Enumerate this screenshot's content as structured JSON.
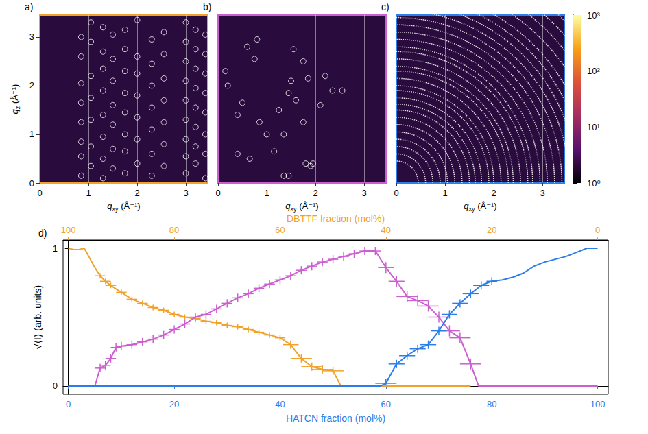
{
  "chart_data": [
    {
      "label": "a)",
      "type": "scatter",
      "color": "#f2a12a",
      "marker": "open_circle",
      "grid": "x",
      "xlabel": "qxy (Å⁻¹)",
      "ylabel": "qz (Å⁻¹)",
      "xlim": [
        0,
        3.45
      ],
      "ylim": [
        0,
        3.45
      ],
      "xticks": [
        0,
        1,
        2,
        3
      ],
      "yticks": [
        0,
        1,
        2,
        3
      ],
      "points": [
        [
          0.85,
          0.15
        ],
        [
          0.85,
          0.55
        ],
        [
          0.85,
          0.85
        ],
        [
          0.85,
          1.25
        ],
        [
          0.85,
          1.65
        ],
        [
          0.85,
          2.05
        ],
        [
          0.85,
          2.6
        ],
        [
          0.85,
          3.0
        ],
        [
          1.05,
          0.35
        ],
        [
          1.05,
          0.75
        ],
        [
          1.05,
          1.3
        ],
        [
          1.05,
          1.75
        ],
        [
          1.05,
          2.2
        ],
        [
          1.05,
          2.9
        ],
        [
          1.05,
          3.3
        ],
        [
          1.3,
          0.1
        ],
        [
          1.3,
          0.5
        ],
        [
          1.3,
          0.95
        ],
        [
          1.3,
          1.4
        ],
        [
          1.3,
          1.9
        ],
        [
          1.3,
          2.35
        ],
        [
          1.3,
          2.7
        ],
        [
          1.3,
          3.2
        ],
        [
          1.5,
          0.3
        ],
        [
          1.5,
          0.7
        ],
        [
          1.5,
          1.2
        ],
        [
          1.5,
          1.6
        ],
        [
          1.5,
          2.1
        ],
        [
          1.5,
          2.55
        ],
        [
          1.5,
          3.05
        ],
        [
          1.75,
          0.2
        ],
        [
          1.75,
          0.65
        ],
        [
          1.75,
          1.0
        ],
        [
          1.75,
          1.45
        ],
        [
          1.75,
          1.85
        ],
        [
          1.75,
          2.3
        ],
        [
          1.75,
          2.75
        ],
        [
          1.75,
          3.15
        ],
        [
          2.0,
          0.4
        ],
        [
          2.0,
          0.9
        ],
        [
          2.0,
          1.35
        ],
        [
          2.0,
          1.8
        ],
        [
          2.0,
          2.25
        ],
        [
          2.0,
          2.6
        ],
        [
          2.0,
          3.35
        ],
        [
          2.3,
          0.15
        ],
        [
          2.3,
          0.6
        ],
        [
          2.3,
          1.1
        ],
        [
          2.3,
          1.55
        ],
        [
          2.3,
          2.0
        ],
        [
          2.3,
          2.45
        ],
        [
          2.3,
          2.95
        ],
        [
          2.55,
          0.35
        ],
        [
          2.55,
          0.8
        ],
        [
          2.55,
          1.25
        ],
        [
          2.55,
          1.7
        ],
        [
          2.55,
          2.15
        ],
        [
          2.55,
          2.65
        ],
        [
          2.55,
          3.1
        ],
        [
          3.0,
          0.2
        ],
        [
          3.0,
          0.55
        ],
        [
          3.0,
          0.9
        ],
        [
          3.0,
          1.3
        ],
        [
          3.0,
          1.7
        ],
        [
          3.0,
          2.1
        ],
        [
          3.0,
          2.5
        ],
        [
          3.0,
          2.9
        ],
        [
          3.0,
          3.3
        ],
        [
          3.2,
          0.4
        ],
        [
          3.2,
          0.75
        ],
        [
          3.2,
          1.15
        ],
        [
          3.2,
          1.55
        ],
        [
          3.2,
          1.95
        ],
        [
          3.2,
          2.35
        ],
        [
          3.2,
          2.75
        ],
        [
          3.2,
          3.15
        ],
        [
          3.4,
          0.1
        ],
        [
          3.4,
          0.6
        ],
        [
          3.4,
          1.0
        ],
        [
          3.4,
          1.45
        ],
        [
          3.4,
          1.85
        ],
        [
          3.4,
          2.25
        ],
        [
          3.4,
          2.65
        ],
        [
          3.4,
          3.05
        ]
      ]
    },
    {
      "label": "b)",
      "type": "scatter",
      "color": "#cc5fd0",
      "marker": "open_circle",
      "grid": "x",
      "tick_labels": "x",
      "xlabel": "qxy (Å⁻¹)",
      "xlim": [
        0,
        3.45
      ],
      "ylim": [
        0,
        3.45
      ],
      "xticks": [
        0,
        1,
        2,
        3
      ],
      "yticks": [
        0,
        1,
        2,
        3
      ],
      "points": [
        [
          0.15,
          2.3
        ],
        [
          0.2,
          2.0
        ],
        [
          0.4,
          1.4
        ],
        [
          0.6,
          2.8
        ],
        [
          0.8,
          2.95
        ],
        [
          0.75,
          2.55
        ],
        [
          0.5,
          1.65
        ],
        [
          0.4,
          0.6
        ],
        [
          0.65,
          0.5
        ],
        [
          0.85,
          1.25
        ],
        [
          1.0,
          1.0
        ],
        [
          1.15,
          0.65
        ],
        [
          1.35,
          0.15
        ],
        [
          1.45,
          0.15
        ],
        [
          1.25,
          1.5
        ],
        [
          1.45,
          1.85
        ],
        [
          1.5,
          2.1
        ],
        [
          1.6,
          1.7
        ],
        [
          1.75,
          2.5
        ],
        [
          1.85,
          2.15
        ],
        [
          1.75,
          1.25
        ],
        [
          1.9,
          0.35
        ],
        [
          1.95,
          0.4
        ],
        [
          1.8,
          0.4
        ],
        [
          2.1,
          1.6
        ],
        [
          2.2,
          2.2
        ],
        [
          2.35,
          1.9
        ],
        [
          2.55,
          1.9
        ],
        [
          1.55,
          2.75
        ],
        [
          1.35,
          1.0
        ]
      ]
    },
    {
      "label": "c)",
      "type": "rings",
      "color": "#2b7de9",
      "line_style": "dotted",
      "grid": "x",
      "tick_labels": "x",
      "xlabel": "qxy (Å⁻¹)",
      "xlim": [
        0,
        3.45
      ],
      "ylim": [
        0,
        3.45
      ],
      "xticks": [
        0,
        1,
        2,
        3
      ],
      "yticks": [
        0,
        1,
        2,
        3
      ],
      "rings": [
        0.45,
        0.6,
        0.75,
        0.9,
        1.05,
        1.2,
        1.35,
        1.5,
        1.62,
        1.75,
        1.9,
        2.0,
        2.15,
        2.3,
        2.4,
        2.55,
        2.7,
        2.8,
        2.95,
        3.1,
        3.25,
        3.4,
        3.55,
        3.7,
        3.85,
        4.0,
        4.2,
        4.4,
        4.6,
        4.8
      ],
      "colorbar": {
        "range": [
          1,
          1000
        ],
        "log": true,
        "ticks": [
          {
            "value": 1,
            "label": "10⁰"
          },
          {
            "value": 10,
            "label": "10¹"
          },
          {
            "value": 100,
            "label": "10²"
          },
          {
            "value": 1000,
            "label": "10³"
          }
        ]
      }
    },
    {
      "label": "d)",
      "type": "line",
      "grid": false,
      "xlabel": "HATCN fraction (mol%)",
      "x2label": "DBTTF fraction (mol%)",
      "ylabel": "√⟨I⟩ (arb. units)",
      "xlim": [
        -1,
        102
      ],
      "xticks": [
        0,
        20,
        40,
        60,
        80,
        100
      ],
      "x2lim": [
        101,
        -2
      ],
      "x2ticks": [
        0,
        20,
        40,
        60,
        80,
        100
      ],
      "ylim": [
        -0.06,
        1.06
      ],
      "yticks": [
        0,
        1
      ],
      "series": [
        {
          "color": "#f2a12a",
          "x": [
            0,
            1,
            2,
            3,
            4,
            5,
            6,
            7,
            8,
            10,
            12,
            14,
            16,
            18,
            20,
            22,
            24,
            26,
            28,
            30,
            32,
            34,
            36,
            38,
            40,
            42,
            44,
            46,
            48,
            50,
            51.5,
            76
          ],
          "values": [
            1.0,
            0.99,
            0.99,
            1.0,
            0.93,
            0.86,
            0.8,
            0.76,
            0.73,
            0.68,
            0.63,
            0.6,
            0.57,
            0.55,
            0.52,
            0.5,
            0.49,
            0.47,
            0.46,
            0.44,
            0.43,
            0.41,
            0.39,
            0.37,
            0.35,
            0.3,
            0.2,
            0.14,
            0.12,
            0.11,
            0,
            0
          ],
          "x_err": [
            null,
            null,
            null,
            null,
            null,
            null,
            1,
            1,
            1,
            1,
            1,
            1,
            1,
            1,
            1,
            1,
            1,
            1,
            1,
            1,
            1,
            1,
            1,
            1,
            1,
            1.5,
            2,
            2,
            2,
            2,
            null,
            null
          ],
          "y_err": [
            null,
            null,
            null,
            null,
            null,
            null,
            0.02,
            0.02,
            0.02,
            0.02,
            0.02,
            0.02,
            0.02,
            0.02,
            0.02,
            0.02,
            0.02,
            0.02,
            0.02,
            0.02,
            0.02,
            0.02,
            0.02,
            0.02,
            0.02,
            0.03,
            0.03,
            0.03,
            0.03,
            0.03,
            null,
            null
          ]
        },
        {
          "color": "#cc5fd0",
          "x": [
            0,
            5,
            6,
            7,
            8,
            9,
            10,
            12,
            14,
            16,
            18,
            20,
            22,
            24,
            26,
            28,
            30,
            32,
            34,
            36,
            38,
            40,
            42,
            44,
            46,
            48,
            50,
            52,
            54,
            56,
            58,
            60,
            62,
            64,
            66,
            68,
            70,
            72,
            74,
            76,
            77.5,
            100
          ],
          "values": [
            0,
            0,
            0.13,
            0.15,
            0.2,
            0.28,
            0.29,
            0.3,
            0.32,
            0.34,
            0.37,
            0.41,
            0.45,
            0.5,
            0.52,
            0.56,
            0.6,
            0.64,
            0.67,
            0.71,
            0.74,
            0.77,
            0.8,
            0.84,
            0.87,
            0.9,
            0.92,
            0.94,
            0.96,
            0.98,
            0.98,
            0.86,
            0.76,
            0.65,
            0.62,
            0.58,
            0.5,
            0.4,
            0.35,
            0.16,
            0,
            0
          ],
          "x_err": [
            null,
            null,
            1,
            1,
            1,
            1,
            1,
            1,
            1,
            1,
            1,
            1,
            1,
            1,
            1,
            1,
            1,
            1,
            1,
            1,
            1,
            1,
            1,
            1,
            1,
            1,
            1,
            1,
            1,
            1,
            1,
            1.5,
            1.5,
            2,
            2,
            2,
            2,
            2,
            2,
            2,
            null,
            null
          ],
          "y_err": [
            null,
            null,
            0.03,
            0.03,
            0.03,
            0.03,
            0.03,
            0.03,
            0.03,
            0.03,
            0.03,
            0.03,
            0.03,
            0.03,
            0.03,
            0.03,
            0.03,
            0.03,
            0.03,
            0.03,
            0.03,
            0.03,
            0.03,
            0.03,
            0.03,
            0.03,
            0.03,
            0.03,
            0.03,
            0.03,
            0.03,
            0.04,
            0.04,
            0.04,
            0.04,
            0.04,
            0.04,
            0.04,
            0.04,
            0.04,
            null,
            null
          ]
        },
        {
          "color": "#2b7de9",
          "x": [
            0,
            59,
            60,
            62,
            64,
            66,
            68,
            70,
            72,
            74,
            76,
            78,
            80,
            82,
            84,
            86,
            88,
            90,
            92,
            94,
            96,
            98,
            100
          ],
          "values": [
            0,
            0,
            0.02,
            0.16,
            0.22,
            0.27,
            0.3,
            0.4,
            0.52,
            0.6,
            0.67,
            0.73,
            0.76,
            0.77,
            0.79,
            0.82,
            0.87,
            0.9,
            0.92,
            0.94,
            0.97,
            1.0,
            1.0
          ],
          "x_err": [
            null,
            null,
            2,
            1.5,
            1.5,
            1.5,
            1.5,
            1.5,
            1.5,
            1.5,
            1.5,
            1.5,
            1,
            null,
            null,
            null,
            null,
            null,
            null,
            null,
            null,
            null,
            null
          ],
          "y_err": [
            null,
            null,
            0.03,
            0.03,
            0.03,
            0.03,
            0.03,
            0.03,
            0.03,
            0.03,
            0.03,
            0.03,
            0.03,
            null,
            null,
            null,
            null,
            null,
            null,
            null,
            null,
            null,
            null
          ]
        }
      ]
    }
  ]
}
